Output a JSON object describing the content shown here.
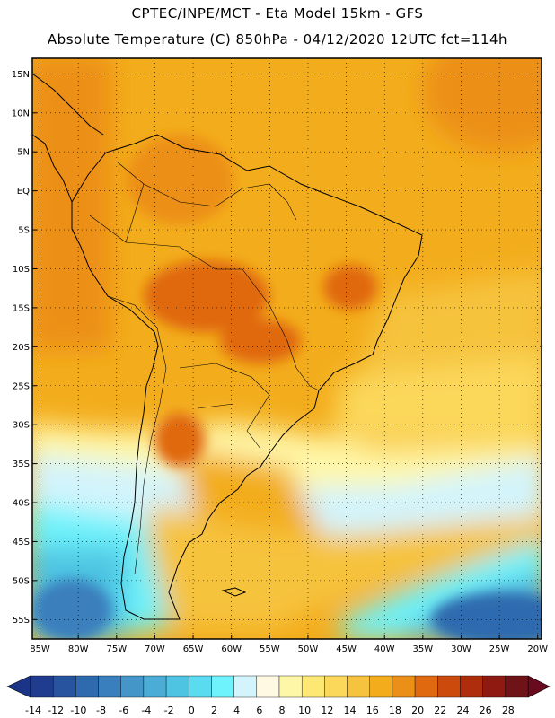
{
  "header": {
    "line1": "CPTEC/INPE/MCT -  Eta Model 15km - GFS",
    "line2": "Absolute Temperature (C) 850hPa - 04/12/2020 12UTC fct=114h"
  },
  "map": {
    "lon_range": [
      -86,
      -19.5
    ],
    "lat_range": [
      -57.5,
      17
    ],
    "lat_ticks": [
      {
        "value": 15,
        "label": "15N"
      },
      {
        "value": 10,
        "label": "10N"
      },
      {
        "value": 5,
        "label": "5N"
      },
      {
        "value": 0,
        "label": "EQ"
      },
      {
        "value": -5,
        "label": "5S"
      },
      {
        "value": -10,
        "label": "10S"
      },
      {
        "value": -15,
        "label": "15S"
      },
      {
        "value": -20,
        "label": "20S"
      },
      {
        "value": -25,
        "label": "25S"
      },
      {
        "value": -30,
        "label": "30S"
      },
      {
        "value": -35,
        "label": "35S"
      },
      {
        "value": -40,
        "label": "40S"
      },
      {
        "value": -45,
        "label": "45S"
      },
      {
        "value": -50,
        "label": "50S"
      },
      {
        "value": -55,
        "label": "55S"
      }
    ],
    "lon_ticks": [
      {
        "value": -85,
        "label": "85W"
      },
      {
        "value": -80,
        "label": "80W"
      },
      {
        "value": -75,
        "label": "75W"
      },
      {
        "value": -70,
        "label": "70W"
      },
      {
        "value": -65,
        "label": "65W"
      },
      {
        "value": -60,
        "label": "60W"
      },
      {
        "value": -55,
        "label": "55W"
      },
      {
        "value": -50,
        "label": "50W"
      },
      {
        "value": -45,
        "label": "45W"
      },
      {
        "value": -40,
        "label": "40W"
      },
      {
        "value": -35,
        "label": "35W"
      },
      {
        "value": -30,
        "label": "30W"
      },
      {
        "value": -25,
        "label": "25W"
      },
      {
        "value": -20,
        "label": "20W"
      }
    ]
  },
  "colorbar": {
    "labels": [
      "-14",
      "-12",
      "-10",
      "-8",
      "-6",
      "-4",
      "-2",
      "0",
      "2",
      "4",
      "6",
      "8",
      "10",
      "12",
      "14",
      "16",
      "18",
      "20",
      "22",
      "24",
      "26",
      "28"
    ],
    "colors": [
      "#1f3c8e",
      "#27539f",
      "#2f6aaf",
      "#3a7fbd",
      "#4596c8",
      "#4badd5",
      "#4ec4e2",
      "#5adbf0",
      "#6ef2fb",
      "#d3f4fc",
      "#fff9e3",
      "#fff7a8",
      "#fde873",
      "#fbd75a",
      "#f6c33e",
      "#f3ad1c",
      "#ec8f16",
      "#e0680f",
      "#cc4a0c",
      "#ad2d0c",
      "#8e1a11",
      "#6e1317"
    ],
    "under_color": "#1c3488",
    "over_color": "#6a0a1e"
  }
}
